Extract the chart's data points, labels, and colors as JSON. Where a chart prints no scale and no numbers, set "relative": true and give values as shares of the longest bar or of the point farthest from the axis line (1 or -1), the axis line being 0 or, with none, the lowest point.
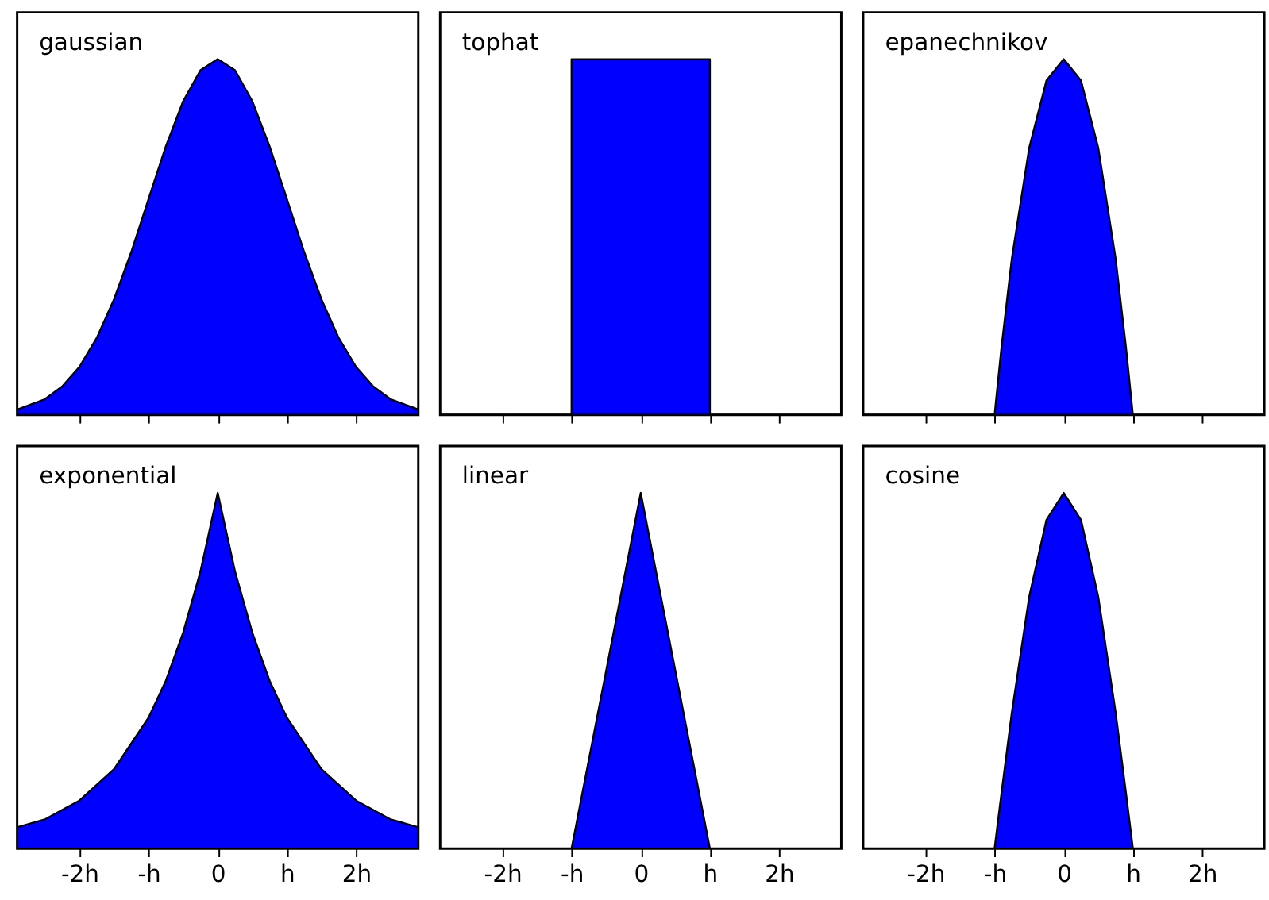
{
  "chart_data": [
    {
      "type": "area",
      "title": "gaussian",
      "relative": true,
      "tick_labels": false,
      "xlim": [
        -2.9,
        2.9
      ],
      "xticks": [
        {
          "value": -2,
          "label": null
        },
        {
          "value": -1,
          "label": null
        },
        {
          "value": 0,
          "label": null
        },
        {
          "value": 1,
          "label": null
        },
        {
          "value": 2,
          "label": null
        }
      ],
      "color": "#0000ff",
      "x": [
        -2.9,
        -2.5,
        -2.25,
        -2,
        -1.75,
        -1.5,
        -1.25,
        -1,
        -0.75,
        -0.5,
        -0.25,
        0,
        0.25,
        0.5,
        0.75,
        1,
        1.25,
        1.5,
        1.75,
        2,
        2.25,
        2.5,
        2.9
      ],
      "values": [
        0.015,
        0.044,
        0.08,
        0.135,
        0.216,
        0.325,
        0.458,
        0.607,
        0.755,
        0.882,
        0.969,
        1,
        0.969,
        0.882,
        0.755,
        0.607,
        0.458,
        0.325,
        0.216,
        0.135,
        0.08,
        0.044,
        0.015
      ]
    },
    {
      "type": "area",
      "title": "tophat",
      "relative": true,
      "tick_labels": false,
      "xlim": [
        -2.9,
        2.9
      ],
      "xticks": [
        {
          "value": -2,
          "label": null
        },
        {
          "value": -1,
          "label": null
        },
        {
          "value": 0,
          "label": null
        },
        {
          "value": 1,
          "label": null
        },
        {
          "value": 2,
          "label": null
        }
      ],
      "color": "#0000ff",
      "x": [
        -2.9,
        -1,
        -1,
        1,
        1,
        2.9
      ],
      "values": [
        0,
        0,
        1,
        1,
        0,
        0
      ]
    },
    {
      "type": "area",
      "title": "epanechnikov",
      "relative": true,
      "tick_labels": false,
      "xlim": [
        -2.9,
        2.9
      ],
      "xticks": [
        {
          "value": -2,
          "label": null
        },
        {
          "value": -1,
          "label": null
        },
        {
          "value": 0,
          "label": null
        },
        {
          "value": 1,
          "label": null
        },
        {
          "value": 2,
          "label": null
        }
      ],
      "color": "#0000ff",
      "x": [
        -2.9,
        -1,
        -0.9,
        -0.75,
        -0.5,
        -0.25,
        0,
        0.25,
        0.5,
        0.75,
        0.9,
        1,
        2.9
      ],
      "values": [
        0,
        0,
        0.19,
        0.44,
        0.75,
        0.94,
        1,
        0.94,
        0.75,
        0.44,
        0.19,
        0,
        0
      ]
    },
    {
      "type": "area",
      "title": "exponential",
      "relative": true,
      "tick_labels": "x",
      "xlim": [
        -2.9,
        2.9
      ],
      "xticks": [
        {
          "value": -2,
          "label": "-2h"
        },
        {
          "value": -1,
          "label": "-h"
        },
        {
          "value": 0,
          "label": "0"
        },
        {
          "value": 1,
          "label": "h"
        },
        {
          "value": 2,
          "label": "2h"
        }
      ],
      "color": "#0000ff",
      "x": [
        -2.9,
        -2.5,
        -2,
        -1.5,
        -1,
        -0.75,
        -0.5,
        -0.25,
        0,
        0.25,
        0.5,
        0.75,
        1,
        1.5,
        2,
        2.5,
        2.9
      ],
      "values": [
        0.06,
        0.082,
        0.135,
        0.223,
        0.368,
        0.472,
        0.607,
        0.779,
        1,
        0.779,
        0.607,
        0.472,
        0.368,
        0.223,
        0.135,
        0.082,
        0.06
      ]
    },
    {
      "type": "area",
      "title": "linear",
      "relative": true,
      "tick_labels": "x",
      "xlim": [
        -2.9,
        2.9
      ],
      "xticks": [
        {
          "value": -2,
          "label": "-2h"
        },
        {
          "value": -1,
          "label": "-h"
        },
        {
          "value": 0,
          "label": "0"
        },
        {
          "value": 1,
          "label": "h"
        },
        {
          "value": 2,
          "label": "2h"
        }
      ],
      "color": "#0000ff",
      "x": [
        -2.9,
        -1,
        0,
        1,
        2.9
      ],
      "values": [
        0,
        0,
        1,
        0,
        0
      ]
    },
    {
      "type": "area",
      "title": "cosine",
      "relative": true,
      "tick_labels": "x",
      "xlim": [
        -2.9,
        2.9
      ],
      "xticks": [
        {
          "value": -2,
          "label": "-2h"
        },
        {
          "value": -1,
          "label": "-h"
        },
        {
          "value": 0,
          "label": "0"
        },
        {
          "value": 1,
          "label": "h"
        },
        {
          "value": 2,
          "label": "2h"
        }
      ],
      "color": "#0000ff",
      "x": [
        -2.9,
        -1,
        -0.9,
        -0.75,
        -0.5,
        -0.25,
        0,
        0.25,
        0.5,
        0.75,
        0.9,
        1,
        2.9
      ],
      "values": [
        0,
        0,
        0.156,
        0.383,
        0.707,
        0.924,
        1,
        0.924,
        0.707,
        0.383,
        0.156,
        0,
        0
      ]
    }
  ]
}
